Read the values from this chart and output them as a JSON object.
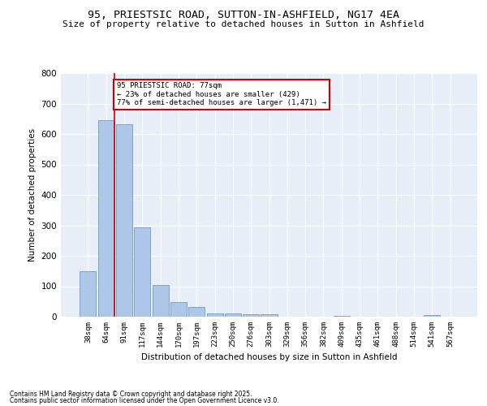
{
  "title": "95, PRIESTSIC ROAD, SUTTON-IN-ASHFIELD, NG17 4EA",
  "subtitle": "Size of property relative to detached houses in Sutton in Ashfield",
  "xlabel": "Distribution of detached houses by size in Sutton in Ashfield",
  "ylabel": "Number of detached properties",
  "categories": [
    "38sqm",
    "64sqm",
    "91sqm",
    "117sqm",
    "144sqm",
    "170sqm",
    "197sqm",
    "223sqm",
    "250sqm",
    "276sqm",
    "303sqm",
    "329sqm",
    "356sqm",
    "382sqm",
    "409sqm",
    "435sqm",
    "461sqm",
    "488sqm",
    "514sqm",
    "541sqm",
    "567sqm"
  ],
  "values": [
    150,
    645,
    632,
    293,
    105,
    47,
    31,
    12,
    10,
    8,
    8,
    1,
    0,
    0,
    4,
    0,
    0,
    0,
    0,
    5,
    0
  ],
  "bar_color": "#aec6e8",
  "bar_edge_color": "#5a8fc2",
  "vline_color": "#cc0000",
  "vline_x": 1.45,
  "annotation_text": "95 PRIESTSIC ROAD: 77sqm\n← 23% of detached houses are smaller (429)\n77% of semi-detached houses are larger (1,471) →",
  "annotation_box_color": "#ffffff",
  "annotation_box_edge": "#cc0000",
  "ylim": [
    0,
    800
  ],
  "yticks": [
    0,
    100,
    200,
    300,
    400,
    500,
    600,
    700,
    800
  ],
  "background_color": "#e8eef8",
  "grid_color": "#ffffff",
  "footer1": "Contains HM Land Registry data © Crown copyright and database right 2025.",
  "footer2": "Contains public sector information licensed under the Open Government Licence v3.0."
}
